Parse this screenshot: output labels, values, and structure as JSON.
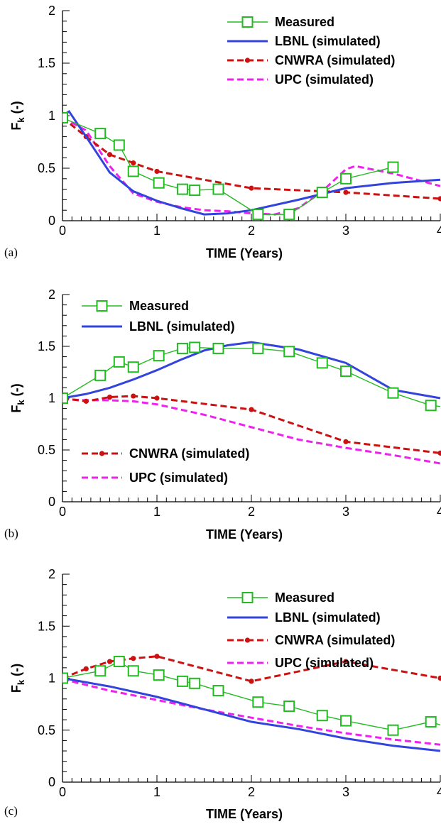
{
  "chart_data": [
    {
      "type": "line",
      "panel_label": "(a)",
      "xlabel": "TIME (Years)",
      "ylabel": "F",
      "ylabel_sub": "k",
      "ylabel_suffix": " (-)",
      "xlim": [
        0,
        4
      ],
      "ylim": [
        0,
        2
      ],
      "xticks": [
        0,
        1,
        2,
        3,
        4
      ],
      "yticks": [
        0,
        0.5,
        1,
        1.5,
        2
      ],
      "ytick_labels": [
        "0",
        "0.5",
        "1",
        "1.5",
        "2"
      ],
      "legend": "top-right",
      "series": [
        {
          "name": "Measured",
          "color": "#22bb22",
          "style": "solid",
          "marker": "open-square",
          "x": [
            0,
            0.4,
            0.6,
            0.75,
            1.02,
            1.27,
            1.4,
            1.65,
            2.07,
            2.4,
            2.75,
            3.0,
            3.5
          ],
          "y": [
            0.98,
            0.83,
            0.72,
            0.47,
            0.36,
            0.3,
            0.29,
            0.3,
            0.06,
            0.06,
            0.27,
            0.4,
            0.51
          ]
        },
        {
          "name": "LBNL (simulated)",
          "color": "#3344dd",
          "style": "solid",
          "marker": "none",
          "x": [
            0,
            0.07,
            0.25,
            0.5,
            0.75,
            1.0,
            1.25,
            1.5,
            1.75,
            2.0,
            2.5,
            3.0,
            3.5,
            4.0
          ],
          "y": [
            1.0,
            1.04,
            0.8,
            0.46,
            0.28,
            0.19,
            0.12,
            0.06,
            0.07,
            0.1,
            0.2,
            0.31,
            0.36,
            0.39
          ]
        },
        {
          "name": "CNWRA (simulated)",
          "color": "#cc1111",
          "style": "dashed",
          "marker": "dot",
          "x": [
            0,
            0.25,
            0.5,
            0.75,
            1.0,
            2.0,
            3.0,
            4.0
          ],
          "y": [
            0.98,
            0.8,
            0.63,
            0.55,
            0.47,
            0.31,
            0.27,
            0.21
          ]
        },
        {
          "name": "UPC (simulated)",
          "color": "#ee22ee",
          "style": "dashed",
          "marker": "none",
          "x": [
            0,
            0.25,
            0.5,
            0.75,
            1.0,
            1.25,
            1.5,
            1.75,
            2.0,
            2.25,
            2.5,
            2.75,
            3.0,
            3.1,
            3.5,
            4.0
          ],
          "y": [
            0.98,
            0.86,
            0.52,
            0.26,
            0.18,
            0.13,
            0.1,
            0.09,
            0.07,
            0.06,
            0.12,
            0.28,
            0.49,
            0.52,
            0.45,
            0.33
          ]
        }
      ]
    },
    {
      "type": "line",
      "panel_label": "(b)",
      "xlabel": "TIME (Years)",
      "ylabel": "F",
      "ylabel_sub": "k",
      "ylabel_suffix": " (-)",
      "xlim": [
        0,
        4
      ],
      "ylim": [
        0,
        2
      ],
      "xticks": [
        0,
        1,
        2,
        3,
        4
      ],
      "yticks": [
        0,
        0.5,
        1,
        1.5,
        2
      ],
      "ytick_labels": [
        "0",
        "0.5",
        "1",
        "1.5",
        "2"
      ],
      "legend": "top-left and lower-left",
      "series": [
        {
          "name": "Measured",
          "color": "#22bb22",
          "style": "solid",
          "marker": "open-square",
          "x": [
            0,
            0.4,
            0.6,
            0.75,
            1.02,
            1.27,
            1.4,
            1.65,
            2.07,
            2.4,
            2.75,
            3.0,
            3.5,
            3.9,
            4.0
          ],
          "y": [
            1.0,
            1.22,
            1.35,
            1.3,
            1.41,
            1.48,
            1.49,
            1.48,
            1.48,
            1.45,
            1.34,
            1.26,
            1.05,
            0.93,
            0.92
          ]
        },
        {
          "name": "LBNL (simulated)",
          "color": "#3344dd",
          "style": "solid",
          "marker": "none",
          "x": [
            0,
            0.25,
            0.5,
            0.75,
            1.0,
            1.25,
            1.5,
            1.75,
            2.0,
            2.5,
            3.0,
            3.5,
            4.0
          ],
          "y": [
            1.0,
            1.04,
            1.1,
            1.18,
            1.27,
            1.37,
            1.46,
            1.51,
            1.54,
            1.47,
            1.34,
            1.08,
            1.0
          ]
        },
        {
          "name": "CNWRA (simulated)",
          "color": "#cc1111",
          "style": "dashed",
          "marker": "dot",
          "x": [
            0,
            0.25,
            0.5,
            0.75,
            1.0,
            2.0,
            3.0,
            4.0
          ],
          "y": [
            1.0,
            0.97,
            1.01,
            1.02,
            1.0,
            0.89,
            0.58,
            0.47
          ]
        },
        {
          "name": "UPC (simulated)",
          "color": "#ee22ee",
          "style": "dashed",
          "marker": "none",
          "x": [
            0,
            0.25,
            0.5,
            0.75,
            1.0,
            1.5,
            2.0,
            2.5,
            3.0,
            3.5,
            4.0
          ],
          "y": [
            0.99,
            0.98,
            0.98,
            0.97,
            0.94,
            0.84,
            0.72,
            0.6,
            0.52,
            0.45,
            0.37
          ]
        }
      ]
    },
    {
      "type": "line",
      "panel_label": "(c)",
      "xlabel": "TIME (Years)",
      "ylabel": "F",
      "ylabel_sub": "k",
      "ylabel_suffix": " (-)",
      "xlim": [
        0,
        4
      ],
      "ylim": [
        0,
        2
      ],
      "xticks": [
        0,
        1,
        2,
        3,
        4
      ],
      "yticks": [
        0,
        0.5,
        1,
        1.5,
        2
      ],
      "ytick_labels": [
        "0",
        "0.5",
        "1",
        "1.5",
        "2"
      ],
      "legend": "top-right",
      "series": [
        {
          "name": "Measured",
          "color": "#22bb22",
          "style": "solid",
          "marker": "open-square",
          "x": [
            0,
            0.4,
            0.6,
            0.75,
            1.02,
            1.27,
            1.4,
            1.65,
            2.07,
            2.4,
            2.75,
            3.0,
            3.5,
            3.9,
            4.0
          ],
          "y": [
            1.0,
            1.07,
            1.16,
            1.07,
            1.03,
            0.97,
            0.95,
            0.88,
            0.77,
            0.73,
            0.64,
            0.59,
            0.5,
            0.58,
            0.55
          ]
        },
        {
          "name": "LBNL (simulated)",
          "color": "#3344dd",
          "style": "solid",
          "marker": "none",
          "x": [
            0,
            0.5,
            1.0,
            1.5,
            2.0,
            2.5,
            3.0,
            3.5,
            4.0
          ],
          "y": [
            1.0,
            0.92,
            0.82,
            0.7,
            0.58,
            0.51,
            0.42,
            0.35,
            0.3
          ]
        },
        {
          "name": "CNWRA (simulated)",
          "color": "#cc1111",
          "style": "dashed",
          "marker": "dot",
          "x": [
            0,
            0.25,
            0.5,
            0.75,
            1.0,
            2.0,
            3.0,
            4.0
          ],
          "y": [
            1.0,
            1.09,
            1.16,
            1.19,
            1.21,
            0.97,
            1.16,
            1.0
          ]
        },
        {
          "name": "UPC (simulated)",
          "color": "#ee22ee",
          "style": "dashed",
          "marker": "none",
          "x": [
            0,
            0.5,
            1.0,
            1.5,
            2.0,
            2.5,
            3.0,
            3.5,
            4.0
          ],
          "y": [
            0.99,
            0.88,
            0.79,
            0.7,
            0.62,
            0.54,
            0.47,
            0.41,
            0.36
          ]
        }
      ]
    }
  ]
}
